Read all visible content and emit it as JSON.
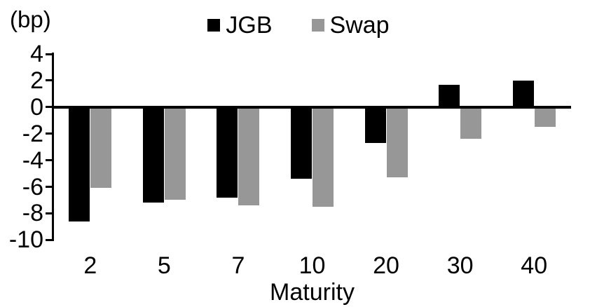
{
  "chart_data": {
    "type": "bar",
    "title": "",
    "unit_label": "(bp)",
    "xlabel": "Maturity",
    "categories": [
      "2",
      "5",
      "7",
      "10",
      "20",
      "30",
      "40"
    ],
    "series": [
      {
        "name": "JGB",
        "color": "#000000",
        "values": [
          -8.6,
          -7.2,
          -6.8,
          -5.4,
          -2.7,
          1.7,
          2.0
        ]
      },
      {
        "name": "Swap",
        "color": "#979797",
        "values": [
          -6.1,
          -7.0,
          -7.4,
          -7.5,
          -5.3,
          -2.4,
          -1.5
        ]
      }
    ],
    "y_ticks": [
      4,
      2,
      0,
      -2,
      -4,
      -6,
      -8,
      -10
    ],
    "ylim": [
      -10,
      4
    ],
    "grid": false,
    "legend_position": "top-center",
    "background_color": "#ffffff"
  }
}
